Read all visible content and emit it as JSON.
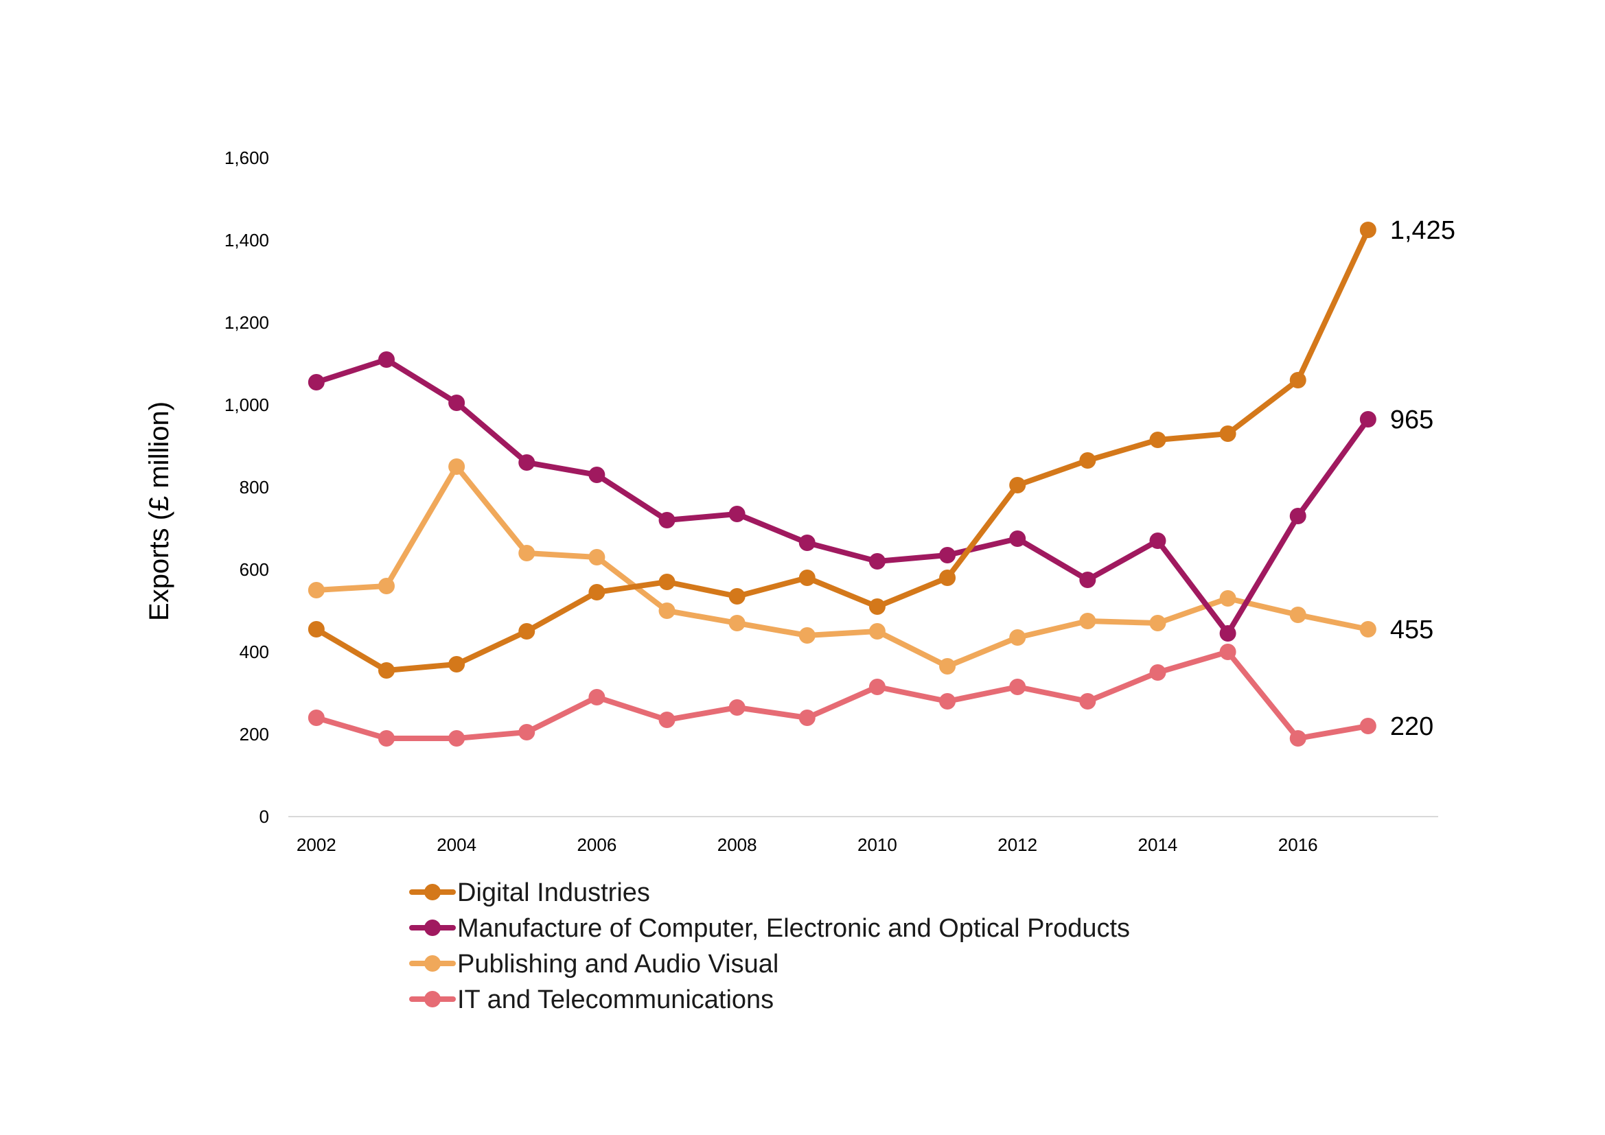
{
  "chart_data": {
    "type": "line",
    "title": "",
    "xlabel": "",
    "ylabel": "Exports (£ million)",
    "x": [
      2002,
      2003,
      2004,
      2005,
      2006,
      2007,
      2008,
      2009,
      2010,
      2011,
      2012,
      2013,
      2014,
      2015,
      2016,
      2017
    ],
    "x_tick_labels": [
      "2002",
      "2004",
      "2006",
      "2008",
      "2010",
      "2012",
      "2014",
      "2016"
    ],
    "x_ticks": [
      2002,
      2004,
      2006,
      2008,
      2010,
      2012,
      2014,
      2016
    ],
    "y_ticks": [
      0,
      200,
      400,
      600,
      800,
      1000,
      1200,
      1400,
      1600
    ],
    "y_tick_labels": [
      "0",
      "200",
      "400",
      "600",
      "800",
      "1,000",
      "1,200",
      "1,400",
      "1,600"
    ],
    "ylim": [
      0,
      1600
    ],
    "xlim": [
      2001.6,
      2018.0
    ],
    "grid": false,
    "legend_position": "bottom",
    "series": [
      {
        "name": "Digital Industries",
        "color": "#D4781A",
        "values": [
          455,
          355,
          370,
          450,
          545,
          570,
          535,
          580,
          510,
          580,
          805,
          865,
          915,
          930,
          1060,
          1425
        ],
        "end_label": "1,425"
      },
      {
        "name": "Manufacture of Computer, Electronic and Optical Products",
        "color": "#A0195F",
        "values": [
          1055,
          1110,
          1005,
          860,
          830,
          720,
          735,
          665,
          620,
          635,
          675,
          575,
          670,
          445,
          730,
          965
        ],
        "end_label": "965"
      },
      {
        "name": "Publishing and Audio Visual",
        "color": "#F0A85A",
        "values": [
          550,
          560,
          850,
          640,
          630,
          500,
          470,
          440,
          450,
          365,
          435,
          475,
          470,
          530,
          490,
          455
        ],
        "end_label": "455"
      },
      {
        "name": "IT and Telecommunications",
        "color": "#E66B74",
        "values": [
          240,
          190,
          190,
          205,
          290,
          235,
          265,
          240,
          315,
          280,
          315,
          280,
          350,
          400,
          190,
          220
        ],
        "end_label": "220"
      }
    ]
  }
}
